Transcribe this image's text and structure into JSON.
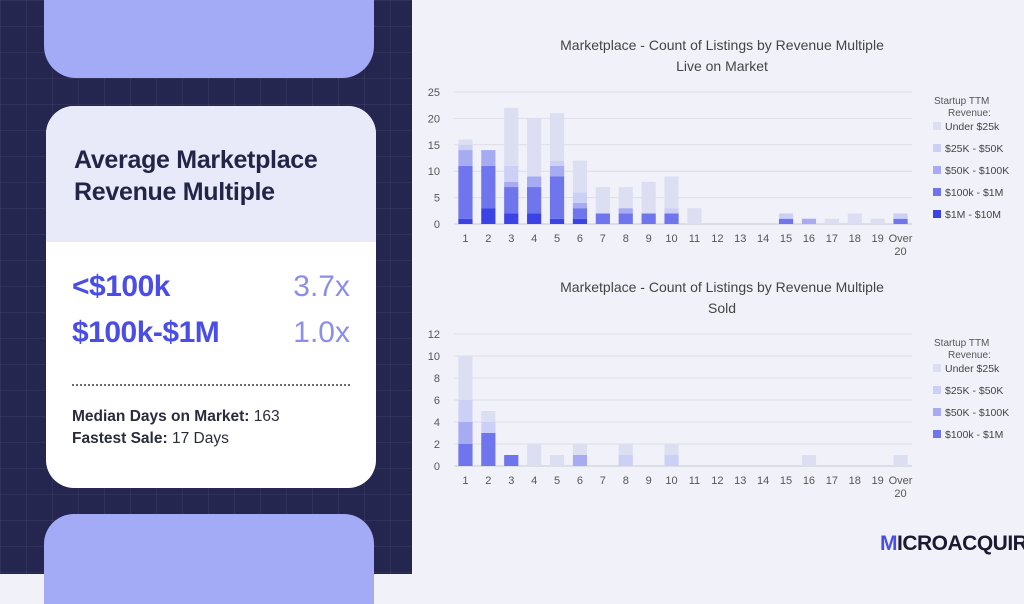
{
  "summary": {
    "title_line1": "Average Marketplace",
    "title_line2": "Revenue Multiple",
    "multiples": [
      {
        "label": "<$100k",
        "value": "3.7x"
      },
      {
        "label": "$100k-$1M",
        "value": "1.0x"
      }
    ],
    "median_days_label": "Median Days on Market:",
    "median_days_value": "163",
    "fastest_sale_label": "Fastest Sale:",
    "fastest_sale_value": "17 Days"
  },
  "brand": {
    "prefix": "M",
    "rest": "ICROACQUIRE",
    "accent_color": "#4a4ee6"
  },
  "chart_data": [
    {
      "type": "bar",
      "stacked": true,
      "title_line1": "Marketplace  -  Count of Listings by Revenue Multiple",
      "title_line2": "Live on Market",
      "categories": [
        "1",
        "2",
        "3",
        "4",
        "5",
        "6",
        "7",
        "8",
        "9",
        "10",
        "11",
        "12",
        "13",
        "14",
        "15",
        "16",
        "17",
        "18",
        "19",
        "Over 20"
      ],
      "ylim": [
        0,
        25
      ],
      "yticks": [
        0,
        5,
        10,
        15,
        20,
        25
      ],
      "grid": true,
      "legend_title": "Startup TTM Revenue:",
      "legend_position": "right",
      "series": [
        {
          "name": "$1M - $10M",
          "color": "#3b43e6",
          "values": [
            1,
            3,
            2,
            2,
            1,
            1,
            0,
            0,
            0,
            0,
            0,
            0,
            0,
            0,
            0,
            0,
            0,
            0,
            0,
            0
          ]
        },
        {
          "name": "$100k - $1M",
          "color": "#6f75ec",
          "values": [
            10,
            8,
            5,
            5,
            8,
            2,
            2,
            2,
            2,
            2,
            0,
            0,
            0,
            0,
            1,
            0,
            0,
            0,
            0,
            1
          ]
        },
        {
          "name": "$50K - $100K",
          "color": "#a7abf1",
          "values": [
            3,
            3,
            1,
            2,
            2,
            1,
            0,
            1,
            0,
            0,
            0,
            0,
            0,
            0,
            0,
            1,
            0,
            0,
            0,
            0
          ]
        },
        {
          "name": "$25K - $50K",
          "color": "#cdd0f6",
          "values": [
            1,
            0,
            3,
            0,
            1,
            2,
            0,
            0,
            0,
            1,
            0,
            0,
            0,
            0,
            1,
            0,
            0,
            0,
            0,
            1
          ]
        },
        {
          "name": "Under $25k",
          "color": "#dcdff2",
          "values": [
            1,
            0,
            11,
            11,
            9,
            6,
            5,
            4,
            6,
            6,
            3,
            0,
            0,
            0,
            0,
            0,
            1,
            2,
            1,
            0
          ]
        }
      ]
    },
    {
      "type": "bar",
      "stacked": true,
      "title_line1": "Marketplace  -  Count of Listings by Revenue Multiple",
      "title_line2": "Sold",
      "categories": [
        "1",
        "2",
        "3",
        "4",
        "5",
        "6",
        "7",
        "8",
        "9",
        "10",
        "11",
        "12",
        "13",
        "14",
        "15",
        "16",
        "17",
        "18",
        "19",
        "Over 20"
      ],
      "ylim": [
        0,
        12
      ],
      "yticks": [
        0,
        2,
        4,
        6,
        8,
        10,
        12
      ],
      "grid": true,
      "legend_title": "Startup TTM Revenue:",
      "legend_position": "right",
      "series": [
        {
          "name": "$100k - $1M",
          "color": "#6f75ec",
          "values": [
            2,
            3,
            1,
            0,
            0,
            0,
            0,
            0,
            0,
            0,
            0,
            0,
            0,
            0,
            0,
            0,
            0,
            0,
            0,
            0
          ]
        },
        {
          "name": "$50K - $100K",
          "color": "#a7abf1",
          "values": [
            2,
            0,
            0,
            0,
            0,
            1,
            0,
            0,
            0,
            0,
            0,
            0,
            0,
            0,
            0,
            0,
            0,
            0,
            0,
            0
          ]
        },
        {
          "name": "$25K - $50K",
          "color": "#cdd0f6",
          "values": [
            2,
            1,
            0,
            0,
            0,
            0,
            0,
            1,
            0,
            1,
            0,
            0,
            0,
            0,
            0,
            0,
            0,
            0,
            0,
            0
          ]
        },
        {
          "name": "Under $25k",
          "color": "#dcdff2",
          "values": [
            4,
            1,
            0,
            2,
            1,
            1,
            0,
            1,
            0,
            1,
            0,
            0,
            0,
            0,
            0,
            1,
            0,
            0,
            0,
            1
          ]
        }
      ]
    }
  ]
}
